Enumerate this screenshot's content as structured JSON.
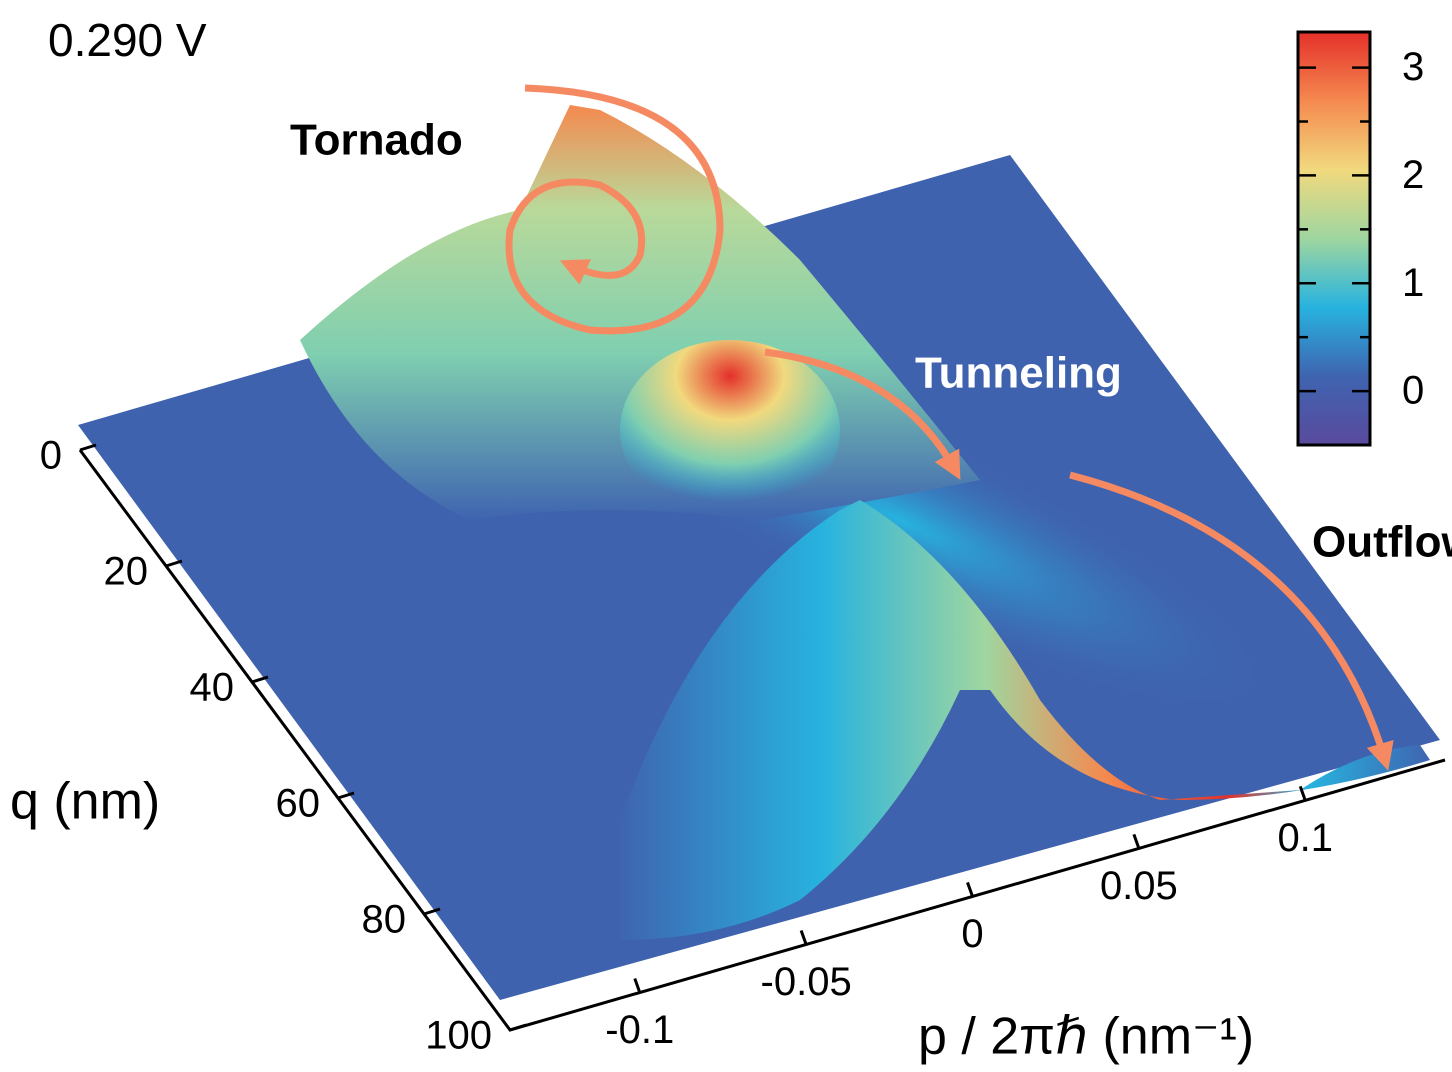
{
  "chart_data": {
    "type": "surface3d",
    "title": "0.290 V",
    "annotations": [
      "Tornado",
      "Tunneling",
      "Outflow"
    ],
    "xlabel": "p / 2πℏ (nm⁻¹)",
    "ylabel": "q (nm)",
    "xlim": [
      -0.139,
      0.142
    ],
    "xticks": [
      -0.1,
      -0.05,
      0,
      0.05,
      0.1
    ],
    "ylim": [
      0,
      100
    ],
    "yticks": [
      0,
      20,
      40,
      60,
      80,
      100
    ],
    "colorbar": {
      "lim": [
        -0.5,
        3.33
      ],
      "ticks": [
        0,
        1,
        2,
        3
      ],
      "minor_ticks": [
        -0.5,
        0.5,
        1.5,
        2.5
      ],
      "colors": [
        "#5a4a9e",
        "#3f64b0",
        "#27b3df",
        "#9fd6a0",
        "#f1d97e",
        "#f5894f",
        "#e4302a"
      ]
    }
  }
}
